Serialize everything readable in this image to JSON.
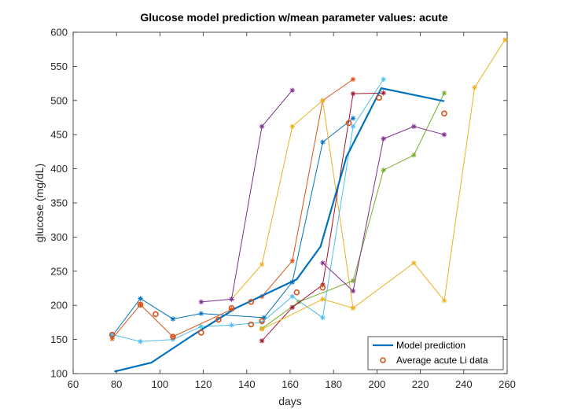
{
  "chart_data": {
    "type": "line",
    "title": "Glucose model prediction w/mean parameter values: acute",
    "xlabel": "days",
    "ylabel": "glucose (mg/dL)",
    "xlim": [
      60,
      260
    ],
    "ylim": [
      100,
      600
    ],
    "xticks": [
      60,
      80,
      100,
      120,
      140,
      160,
      180,
      200,
      220,
      240,
      260
    ],
    "yticks": [
      100,
      150,
      200,
      250,
      300,
      350,
      400,
      450,
      500,
      550,
      600
    ],
    "legend": {
      "position": "bottom-right",
      "entries": [
        "Model prediction",
        "Average acute Li data"
      ]
    },
    "model_prediction": {
      "name": "Model prediction",
      "color": "#0072BD",
      "x": [
        79,
        96,
        115,
        135,
        149,
        163,
        174,
        186,
        202,
        231
      ],
      "y": [
        103,
        116,
        156,
        196,
        217,
        238,
        286,
        418,
        518,
        499
      ]
    },
    "average_data": {
      "name": "Average acute Li data",
      "color": "#D95319",
      "x": [
        78,
        91,
        98,
        106,
        119,
        127,
        133,
        142,
        147,
        163,
        175,
        187,
        201,
        231,
        142
      ],
      "y": [
        157,
        201,
        187,
        154,
        160,
        179,
        196,
        205,
        177,
        219,
        226,
        467,
        504,
        481,
        172
      ]
    },
    "individual_series": [
      {
        "color": "#0072BD",
        "x": [
          78,
          91,
          106,
          119,
          148,
          161,
          175,
          189
        ],
        "y": [
          155,
          210,
          180,
          188,
          182,
          234,
          439,
          474
        ]
      },
      {
        "color": "#D95319",
        "x": [
          78,
          91,
          106,
          133,
          147,
          161,
          175,
          189
        ],
        "y": [
          151,
          201,
          154,
          194,
          213,
          265,
          500,
          531
        ]
      },
      {
        "color": "#EDB120",
        "x": [
          133,
          147,
          161,
          175,
          189,
          217,
          231,
          245,
          259
        ],
        "y": [
          209,
          260,
          462,
          500,
          196,
          262,
          207,
          519,
          589
        ]
      },
      {
        "color": "#7E2F8E",
        "x": [
          119,
          133,
          147,
          161
        ],
        "y": [
          205,
          209,
          462,
          515
        ]
      },
      {
        "color": "#77AC30",
        "x": [
          147,
          164,
          189,
          203,
          217,
          231
        ],
        "y": [
          166,
          205,
          236,
          398,
          420,
          511
        ]
      },
      {
        "color": "#4DBEEE",
        "x": [
          78,
          91,
          106,
          119,
          133,
          147,
          161,
          175,
          189,
          203
        ],
        "y": [
          157,
          147,
          150,
          169,
          171,
          175,
          213,
          182,
          462,
          531
        ]
      },
      {
        "color": "#A2142F",
        "x": [
          147,
          161,
          175,
          189,
          203
        ],
        "y": [
          148,
          197,
          230,
          510,
          511
        ]
      },
      {
        "color": "#EDB120",
        "x": [
          147,
          175,
          189
        ],
        "y": [
          165,
          209,
          196
        ]
      },
      {
        "color": "#7E2F8E",
        "x": [
          175,
          189,
          203,
          217,
          231
        ],
        "y": [
          262,
          221,
          444,
          462,
          450
        ]
      }
    ]
  }
}
